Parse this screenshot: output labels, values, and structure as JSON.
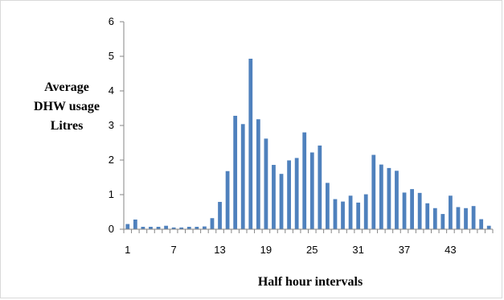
{
  "chart_data": {
    "type": "bar",
    "title": "",
    "xlabel": "Half hour intervals",
    "ylabel_lines": [
      "Average",
      "DHW usage",
      "Litres"
    ],
    "ylim": [
      0,
      6
    ],
    "yticks": [
      "0",
      "1",
      "2",
      "3",
      "4",
      "5",
      "6"
    ],
    "x": [
      1,
      2,
      3,
      4,
      5,
      6,
      7,
      8,
      9,
      10,
      11,
      12,
      13,
      14,
      15,
      16,
      17,
      18,
      19,
      20,
      21,
      22,
      23,
      24,
      25,
      26,
      27,
      28,
      29,
      30,
      31,
      32,
      33,
      34,
      35,
      36,
      37,
      38,
      39,
      40,
      41,
      42,
      43,
      44,
      45,
      46,
      47,
      48
    ],
    "xtick_labels": [
      "1",
      "7",
      "13",
      "19",
      "25",
      "31",
      "37",
      "43"
    ],
    "xtick_at": [
      1,
      7,
      13,
      19,
      25,
      31,
      37,
      43
    ],
    "values": [
      0.15,
      0.28,
      0.07,
      0.07,
      0.07,
      0.1,
      0.05,
      0.05,
      0.07,
      0.07,
      0.08,
      0.32,
      0.79,
      1.68,
      3.28,
      3.04,
      4.93,
      3.18,
      2.62,
      1.86,
      1.6,
      1.99,
      2.06,
      2.8,
      2.22,
      2.42,
      1.34,
      0.87,
      0.8,
      0.97,
      0.77,
      1.01,
      2.15,
      1.87,
      1.77,
      1.69,
      1.06,
      1.16,
      1.05,
      0.75,
      0.61,
      0.44,
      0.97,
      0.64,
      0.61,
      0.67,
      0.29,
      0.1
    ],
    "bar_color": "#4f81bd",
    "axis_color": "#868686",
    "grid": false,
    "legend": "none"
  }
}
